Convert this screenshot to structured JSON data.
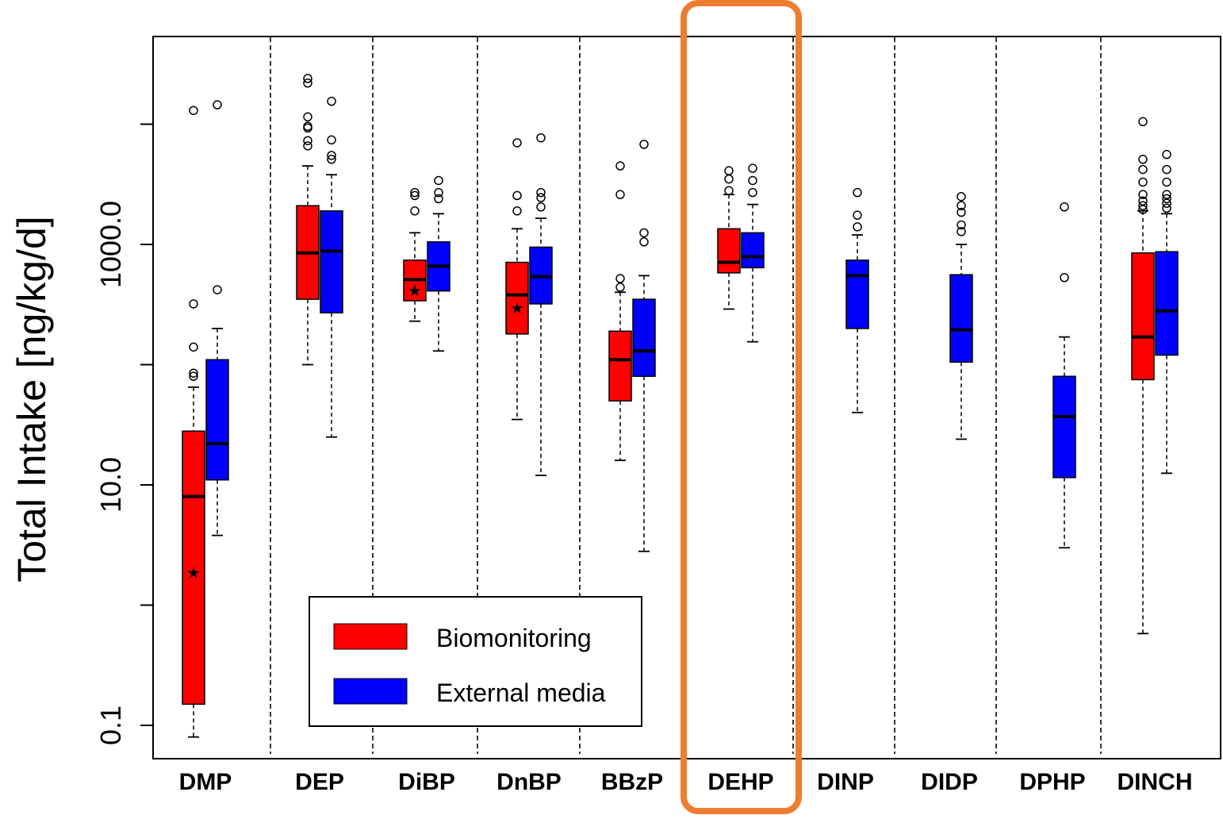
{
  "chart_data": {
    "type": "boxplot",
    "ylabel": "Total Intake [ng/kg/d]",
    "yscale": "log10",
    "ylim": [
      0.05,
      70000
    ],
    "y_tick_labels": [
      {
        "value": 0.1,
        "label": "0.1"
      },
      {
        "value": 10,
        "label": "10.0"
      },
      {
        "value": 1000,
        "label": "1000.0"
      }
    ],
    "y_minor_ticks": [
      1,
      100,
      10000
    ],
    "categories": [
      "DMP",
      "DEP",
      "DiBP",
      "DnBP",
      "BBzP",
      "DEHP",
      "DINP",
      "DIDP",
      "DPHP",
      "DINCH"
    ],
    "highlighted_category": "DEHP",
    "highlight_color": "#ED7D31",
    "legend": {
      "position": "bottom-center",
      "entries": [
        {
          "label": "Biomonitoring",
          "color": "#FF0000"
        },
        {
          "label": "External media",
          "color": "#0000FF"
        }
      ]
    },
    "series": [
      {
        "name": "Biomonitoring",
        "color": "#FF0000",
        "boxes": [
          {
            "category": "DMP",
            "whisker_low": 0.08,
            "q1": 0.15,
            "median": 8,
            "q3": 28,
            "whisker_high": 65,
            "mean": 1.9,
            "outliers": [
              80,
              85,
              140,
              320,
              13000
            ]
          },
          {
            "category": "DEP",
            "whisker_low": 100,
            "q1": 350,
            "median": 850,
            "q3": 2100,
            "whisker_high": 4500,
            "outliers": [
              6600,
              7300,
              9300,
              9600,
              11500,
              22000,
              24000
            ]
          },
          {
            "category": "DiBP",
            "whisker_low": 230,
            "q1": 340,
            "median": 510,
            "q3": 740,
            "whisker_high": 1250,
            "mean": 420,
            "outliers": [
              1900,
              2550,
              2700
            ]
          },
          {
            "category": "DnBP",
            "whisker_low": 35,
            "q1": 180,
            "median": 380,
            "q3": 710,
            "whisker_high": 1350,
            "mean": 300,
            "outliers": [
              1900,
              2550,
              7000
            ]
          },
          {
            "category": "BBzP",
            "whisker_low": 16,
            "q1": 50,
            "median": 110,
            "q3": 190,
            "whisker_high": 400,
            "outliers": [
              440,
              520,
              2600,
              4500
            ]
          },
          {
            "category": "DEHP",
            "whisker_low": 290,
            "q1": 580,
            "median": 710,
            "q3": 1350,
            "whisker_high": 2600,
            "outliers": [
              2800,
              3500,
              4100
            ]
          },
          {
            "category": "DINP"
          },
          {
            "category": "DIDP"
          },
          {
            "category": "DPHP"
          },
          {
            "category": "DINCH",
            "whisker_low": 0.58,
            "q1": 75,
            "median": 170,
            "q3": 850,
            "whisker_high": 1900,
            "outliers": [
              1950,
              2100,
              2300,
              2600,
              3300,
              4200,
              5100,
              10500
            ]
          }
        ]
      },
      {
        "name": "External media",
        "color": "#0000FF",
        "boxes": [
          {
            "category": "DMP",
            "whisker_low": 3.8,
            "q1": 11,
            "median": 22,
            "q3": 110,
            "whisker_high": 200,
            "outliers": [
              420,
              14500
            ]
          },
          {
            "category": "DEP",
            "whisker_low": 25,
            "q1": 270,
            "median": 880,
            "q3": 1900,
            "whisker_high": 3800,
            "outliers": [
              5100,
              5500,
              7400,
              15500
            ]
          },
          {
            "category": "DiBP",
            "whisker_low": 130,
            "q1": 410,
            "median": 660,
            "q3": 1050,
            "whisker_high": 1800,
            "outliers": [
              2400,
              2700,
              3400
            ]
          },
          {
            "category": "DnBP",
            "whisker_low": 12,
            "q1": 320,
            "median": 540,
            "q3": 950,
            "whisker_high": 1650,
            "outliers": [
              2050,
              2450,
              2700,
              7700
            ]
          },
          {
            "category": "BBzP",
            "whisker_low": 2.8,
            "q1": 80,
            "median": 130,
            "q3": 350,
            "whisker_high": 550,
            "outliers": [
              1050,
              1250,
              6800
            ]
          },
          {
            "category": "DEHP",
            "whisker_low": 155,
            "q1": 640,
            "median": 790,
            "q3": 1250,
            "whisker_high": 2150,
            "outliers": [
              2700,
              3400,
              4300
            ]
          },
          {
            "category": "DINP",
            "whisker_low": 40,
            "q1": 200,
            "median": 550,
            "q3": 740,
            "whisker_high": 1200,
            "outliers": [
              1400,
              1750,
              2700
            ]
          },
          {
            "category": "DIDP",
            "whisker_low": 24,
            "q1": 105,
            "median": 195,
            "q3": 560,
            "whisker_high": 1000,
            "outliers": [
              1280,
              1450,
              1850,
              2100,
              2500
            ]
          },
          {
            "category": "DPHP",
            "whisker_low": 3,
            "q1": 11.5,
            "median": 37,
            "q3": 80,
            "whisker_high": 170,
            "outliers": [
              530,
              2050
            ]
          },
          {
            "category": "DINCH",
            "whisker_low": 12.5,
            "q1": 120,
            "median": 280,
            "q3": 870,
            "whisker_high": 1800,
            "outliers": [
              2000,
              2200,
              2400,
              2600,
              3300,
              4200,
              5600
            ]
          }
        ]
      }
    ]
  }
}
